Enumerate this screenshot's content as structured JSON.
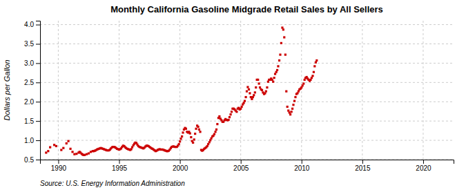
{
  "chart_data": {
    "type": "scatter",
    "title": "Monthly California Gasoline Midgrade Retail Sales by All Sellers",
    "ylabel": "Dollars per Gallon",
    "annotations": [
      "Source: U.S. Energy Information Administration"
    ],
    "color": "#cc0000",
    "marker": "square",
    "grid": true,
    "xlim": [
      1988.5,
      2022.5
    ],
    "ylim": [
      0.5,
      4.1
    ],
    "xticks": [
      1990,
      1995,
      2000,
      2005,
      2010,
      2015,
      2020
    ],
    "yticks": [
      0.5,
      {
        "value": 1,
        "label": "1.0"
      },
      1.5,
      {
        "value": 2,
        "label": "2.0"
      },
      2.5,
      {
        "value": 3,
        "label": "3.0"
      },
      3.5,
      {
        "value": 4,
        "label": "4.0"
      }
    ],
    "x": [
      1989.0,
      1989.17,
      1989.33,
      1989.67,
      1989.83,
      1990.25,
      1990.42,
      1990.67,
      1990.83,
      1991.0,
      1991.17,
      1991.33,
      1991.5,
      1991.67,
      1991.75,
      1991.83,
      1991.92,
      1992.0,
      1992.08,
      1992.17,
      1992.33,
      1992.5,
      1992.67,
      1992.83,
      1992.92,
      1993.0,
      1993.08,
      1993.17,
      1993.25,
      1993.33,
      1993.42,
      1993.5,
      1993.58,
      1993.67,
      1993.75,
      1993.83,
      1993.92,
      1994.0,
      1994.08,
      1994.17,
      1994.25,
      1994.33,
      1994.42,
      1994.5,
      1994.58,
      1994.67,
      1994.75,
      1994.83,
      1994.92,
      1995.0,
      1995.08,
      1995.17,
      1995.25,
      1995.33,
      1995.42,
      1995.5,
      1995.58,
      1995.67,
      1995.75,
      1995.83,
      1995.92,
      1996.0,
      1996.08,
      1996.17,
      1996.25,
      1996.33,
      1996.42,
      1996.5,
      1996.58,
      1996.67,
      1996.75,
      1996.83,
      1996.92,
      1997.0,
      1997.08,
      1997.17,
      1997.25,
      1997.33,
      1997.42,
      1997.5,
      1997.58,
      1997.67,
      1997.75,
      1997.83,
      1997.92,
      1998.0,
      1998.08,
      1998.17,
      1998.25,
      1998.33,
      1998.42,
      1998.5,
      1998.58,
      1998.67,
      1998.75,
      1998.83,
      1998.92,
      1999.0,
      1999.08,
      1999.17,
      1999.25,
      1999.33,
      1999.42,
      1999.5,
      1999.58,
      1999.67,
      1999.75,
      1999.83,
      1999.92,
      2000.0,
      2000.08,
      2000.17,
      2000.25,
      2000.33,
      2000.42,
      2000.5,
      2000.58,
      2000.67,
      2000.75,
      2000.83,
      2000.92,
      2001.0,
      2001.08,
      2001.17,
      2001.25,
      2001.33,
      2001.42,
      2001.5,
      2001.58,
      2001.67,
      2001.75,
      2001.83,
      2001.92,
      2002.0,
      2002.08,
      2002.17,
      2002.25,
      2002.33,
      2002.42,
      2002.5,
      2002.58,
      2002.67,
      2002.75,
      2002.83,
      2002.92,
      2003.0,
      2003.08,
      2003.17,
      2003.25,
      2003.33,
      2003.42,
      2003.5,
      2003.58,
      2003.67,
      2003.75,
      2003.83,
      2003.92,
      2004.0,
      2004.08,
      2004.17,
      2004.25,
      2004.33,
      2004.42,
      2004.5,
      2004.58,
      2004.67,
      2004.75,
      2004.83,
      2004.92,
      2005.0,
      2005.08,
      2005.17,
      2005.25,
      2005.33,
      2005.42,
      2005.5,
      2005.58,
      2005.67,
      2005.75,
      2005.83,
      2005.92,
      2006.0,
      2006.08,
      2006.17,
      2006.25,
      2006.33,
      2006.42,
      2006.5,
      2006.58,
      2006.67,
      2006.75,
      2006.83,
      2006.92,
      2007.0,
      2007.08,
      2007.17,
      2007.25,
      2007.33,
      2007.42,
      2007.5,
      2007.58,
      2007.67,
      2007.75,
      2007.83,
      2007.92,
      2008.0,
      2008.08,
      2008.17,
      2008.25,
      2008.33,
      2008.42,
      2008.5,
      2008.58,
      2008.67,
      2008.75,
      2008.83,
      2008.92,
      2009.0,
      2009.08,
      2009.17,
      2009.25,
      2009.33,
      2009.42,
      2009.5,
      2009.58,
      2009.67,
      2009.75,
      2009.83,
      2009.92,
      2010.0,
      2010.08,
      2010.17,
      2010.25,
      2010.33,
      2010.42,
      2010.5,
      2010.58,
      2010.67,
      2010.75,
      2010.83,
      2010.92,
      2011.0,
      2011.08,
      2011.17,
      2011.25
    ],
    "values": [
      0.68,
      0.72,
      0.82,
      0.88,
      0.85,
      0.75,
      0.8,
      0.92,
      0.98,
      0.78,
      0.7,
      0.64,
      0.65,
      0.68,
      0.7,
      0.68,
      0.65,
      0.63,
      0.62,
      0.62,
      0.64,
      0.66,
      0.7,
      0.72,
      0.72,
      0.73,
      0.74,
      0.76,
      0.77,
      0.78,
      0.79,
      0.8,
      0.79,
      0.78,
      0.77,
      0.76,
      0.75,
      0.74,
      0.74,
      0.74,
      0.76,
      0.79,
      0.82,
      0.83,
      0.83,
      0.82,
      0.8,
      0.78,
      0.77,
      0.76,
      0.77,
      0.79,
      0.83,
      0.86,
      0.85,
      0.82,
      0.8,
      0.78,
      0.77,
      0.76,
      0.75,
      0.77,
      0.82,
      0.87,
      0.91,
      0.94,
      0.93,
      0.89,
      0.85,
      0.83,
      0.82,
      0.81,
      0.8,
      0.79,
      0.81,
      0.84,
      0.86,
      0.86,
      0.85,
      0.83,
      0.81,
      0.79,
      0.78,
      0.76,
      0.74,
      0.72,
      0.73,
      0.75,
      0.76,
      0.77,
      0.76,
      0.76,
      0.76,
      0.75,
      0.74,
      0.73,
      0.72,
      0.72,
      0.73,
      0.76,
      0.8,
      0.83,
      0.84,
      0.84,
      0.83,
      0.83,
      0.83,
      0.86,
      0.9,
      0.97,
      1.04,
      1.1,
      1.2,
      1.28,
      1.32,
      1.3,
      1.22,
      1.2,
      1.22,
      1.18,
      1.08,
      0.98,
      0.94,
      1.02,
      1.17,
      1.3,
      1.38,
      1.35,
      1.28,
      1.22,
      0.75,
      0.73,
      0.75,
      0.78,
      0.8,
      0.82,
      0.85,
      0.9,
      0.95,
      1.0,
      1.05,
      1.1,
      1.12,
      1.16,
      1.22,
      1.28,
      1.42,
      1.58,
      1.62,
      1.56,
      1.52,
      1.48,
      1.48,
      1.52,
      1.55,
      1.53,
      1.52,
      1.53,
      1.6,
      1.67,
      1.74,
      1.82,
      1.82,
      1.8,
      1.77,
      1.74,
      1.82,
      1.84,
      1.8,
      1.82,
      1.87,
      1.93,
      1.97,
      2.02,
      2.12,
      2.27,
      2.38,
      2.32,
      2.22,
      2.12,
      2.07,
      2.12,
      2.17,
      2.24,
      2.37,
      2.57,
      2.57,
      2.47,
      2.37,
      2.32,
      2.3,
      2.24,
      2.2,
      2.22,
      2.27,
      2.37,
      2.52,
      2.57,
      2.57,
      2.6,
      2.57,
      2.52,
      2.62,
      2.72,
      2.77,
      2.82,
      2.92,
      3.07,
      3.22,
      3.52,
      3.92,
      3.87,
      3.67,
      3.22,
      2.27,
      1.87,
      1.77,
      1.72,
      1.67,
      1.74,
      1.82,
      1.92,
      2.02,
      2.12,
      2.2,
      2.22,
      2.27,
      2.32,
      2.34,
      2.37,
      2.42,
      2.47,
      2.57,
      2.62,
      2.64,
      2.6,
      2.57,
      2.54,
      2.57,
      2.62,
      2.67,
      2.77,
      2.92,
      3.02,
      3.07
    ]
  }
}
